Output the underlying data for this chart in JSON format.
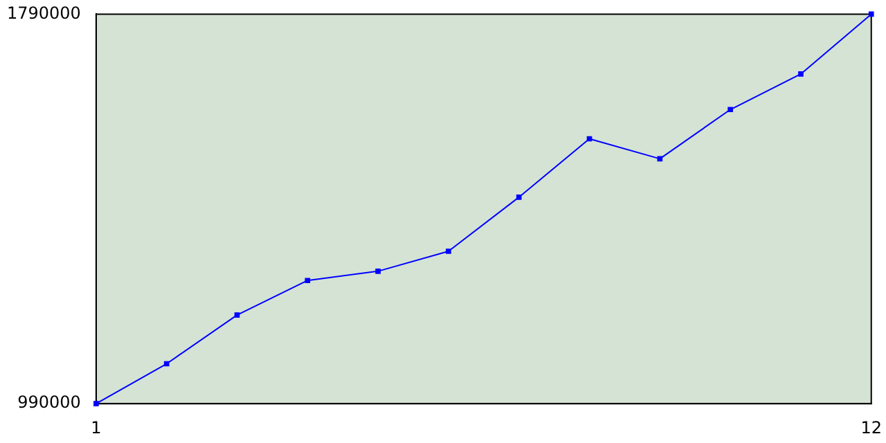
{
  "chart_data": {
    "type": "line",
    "x": [
      1,
      2,
      3,
      4,
      5,
      6,
      7,
      8,
      9,
      10,
      11,
      12
    ],
    "values": [
      990000,
      1072000,
      1172000,
      1243000,
      1262000,
      1303000,
      1414000,
      1534000,
      1493000,
      1594000,
      1667000,
      1790000
    ],
    "color": "#0000ff",
    "xlim": [
      1,
      12
    ],
    "xticks": [
      1,
      12
    ],
    "ylim": [
      990000,
      1790000
    ],
    "yticks": [
      990000,
      1790000
    ],
    "grid": false,
    "legend": false,
    "marker": "square",
    "line_style": "solid"
  }
}
